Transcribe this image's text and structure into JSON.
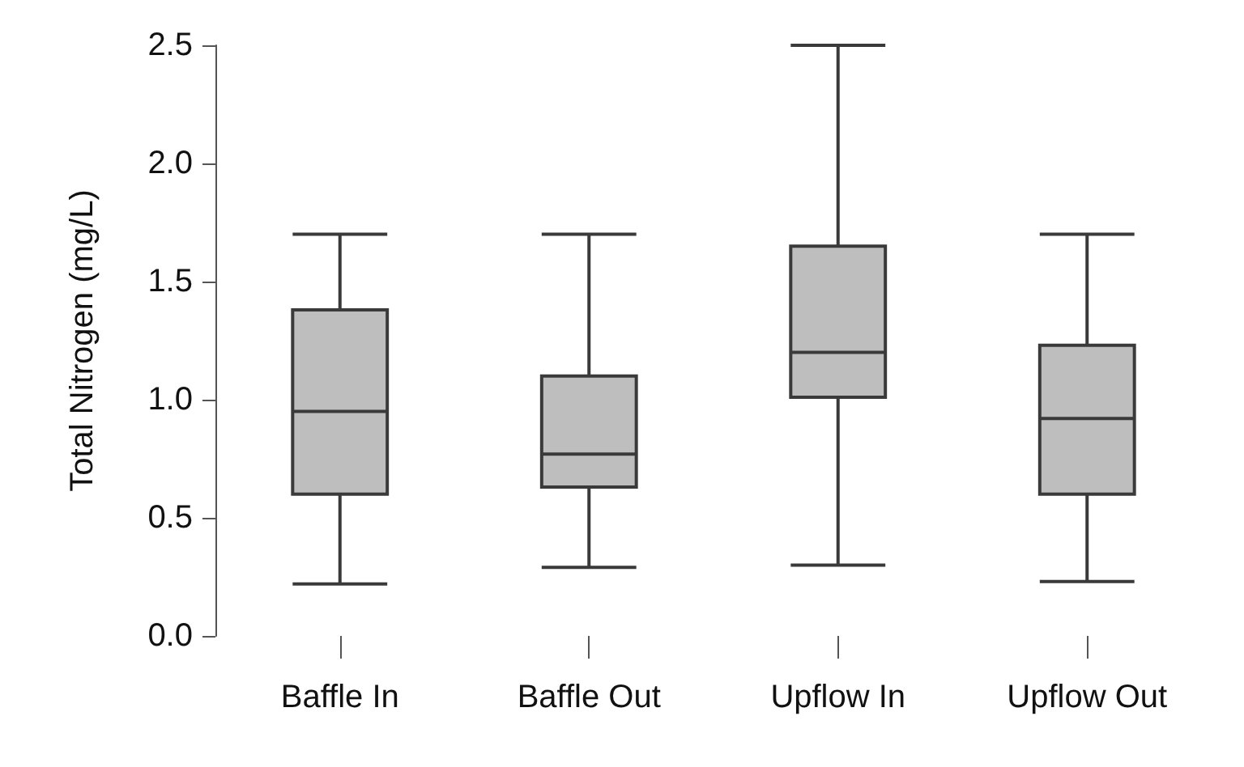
{
  "chart_data": {
    "type": "box",
    "ylabel": "Total Nitrogen (mg/L)",
    "categories": [
      "Baffle In",
      "Baffle Out",
      "Upflow In",
      "Upflow Out"
    ],
    "color": "#bebebe",
    "boxes": [
      {
        "low": 0.22,
        "q1": 0.6,
        "median": 0.95,
        "q3": 1.38,
        "high": 1.7
      },
      {
        "low": 0.29,
        "q1": 0.63,
        "median": 0.77,
        "q3": 1.1,
        "high": 1.7
      },
      {
        "low": 0.3,
        "q1": 1.01,
        "median": 1.2,
        "q3": 1.65,
        "high": 2.5
      },
      {
        "low": 0.23,
        "q1": 0.6,
        "median": 0.92,
        "q3": 1.23,
        "high": 1.7
      }
    ],
    "ylim": [
      0,
      2.5
    ],
    "yticks": [
      {
        "value": 0,
        "label": "0.0"
      },
      0.5,
      {
        "value": 1,
        "label": "1.0"
      },
      1.5,
      {
        "value": 2,
        "label": "2.0"
      },
      2.5
    ],
    "grid": false
  }
}
